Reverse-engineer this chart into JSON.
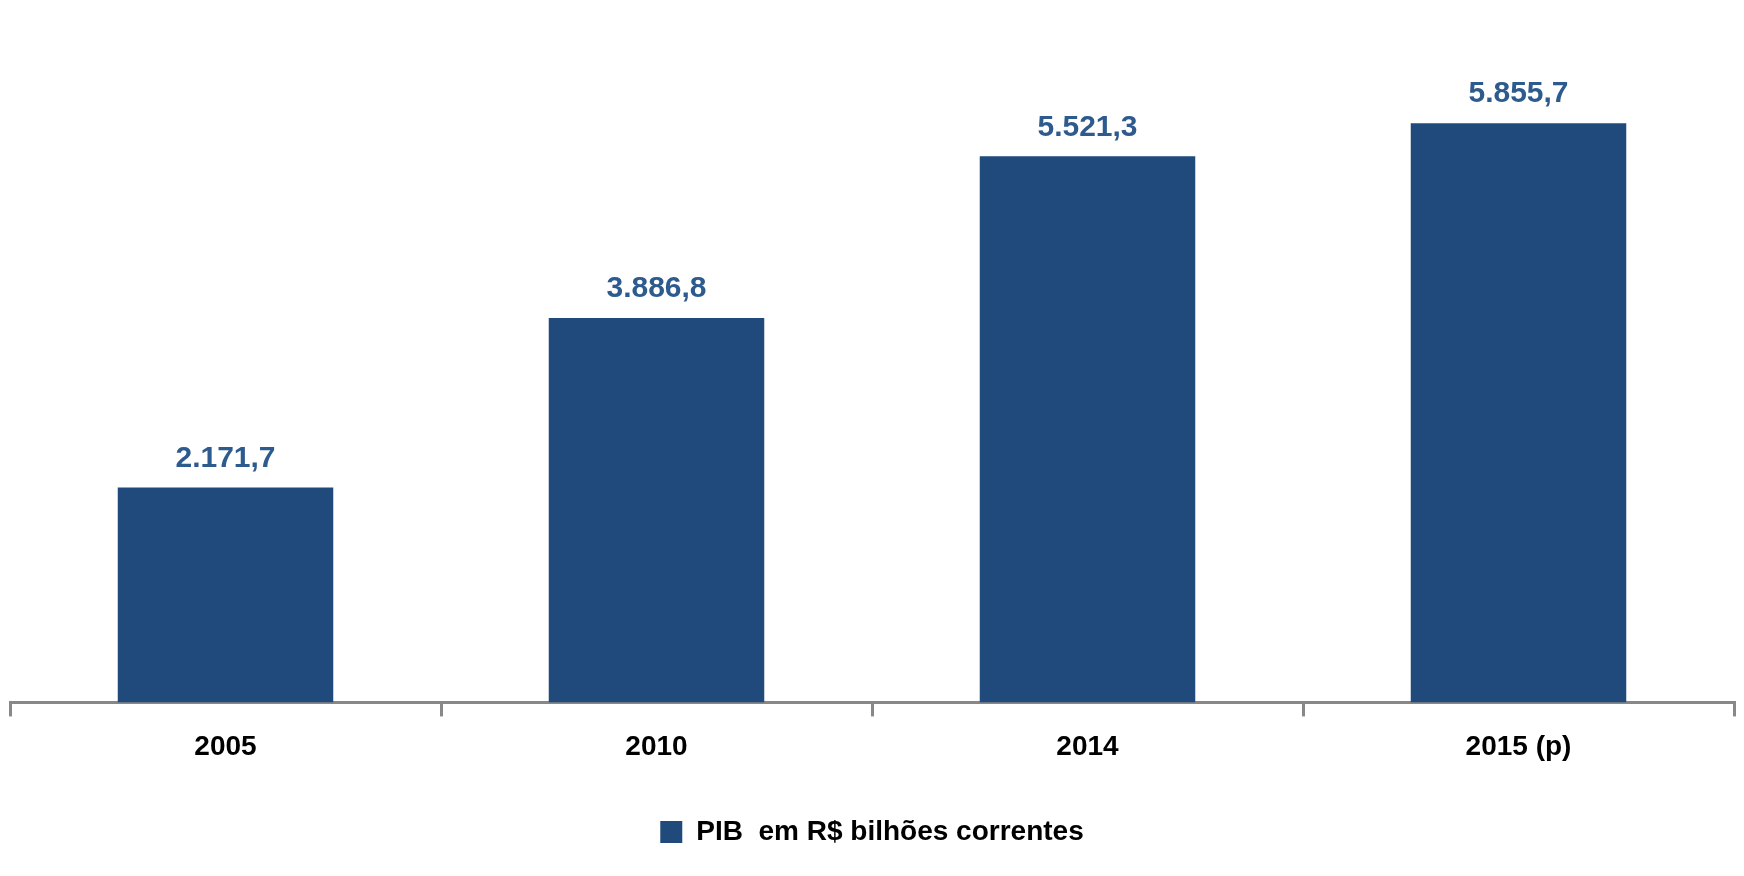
{
  "chart_data": {
    "type": "bar",
    "categories": [
      "2005",
      "2010",
      "2014",
      "2015 (p)"
    ],
    "series": [
      {
        "name": "PIB  em R$ bilhões correntes",
        "color": "#214a7c",
        "values": [
          2171.7,
          3886.8,
          5521.3,
          5855.7
        ],
        "value_labels": [
          "2.171,7",
          "3.886,8",
          "5.521,3",
          "5.855,7"
        ]
      }
    ],
    "legend": "bottom",
    "grid": false
  }
}
